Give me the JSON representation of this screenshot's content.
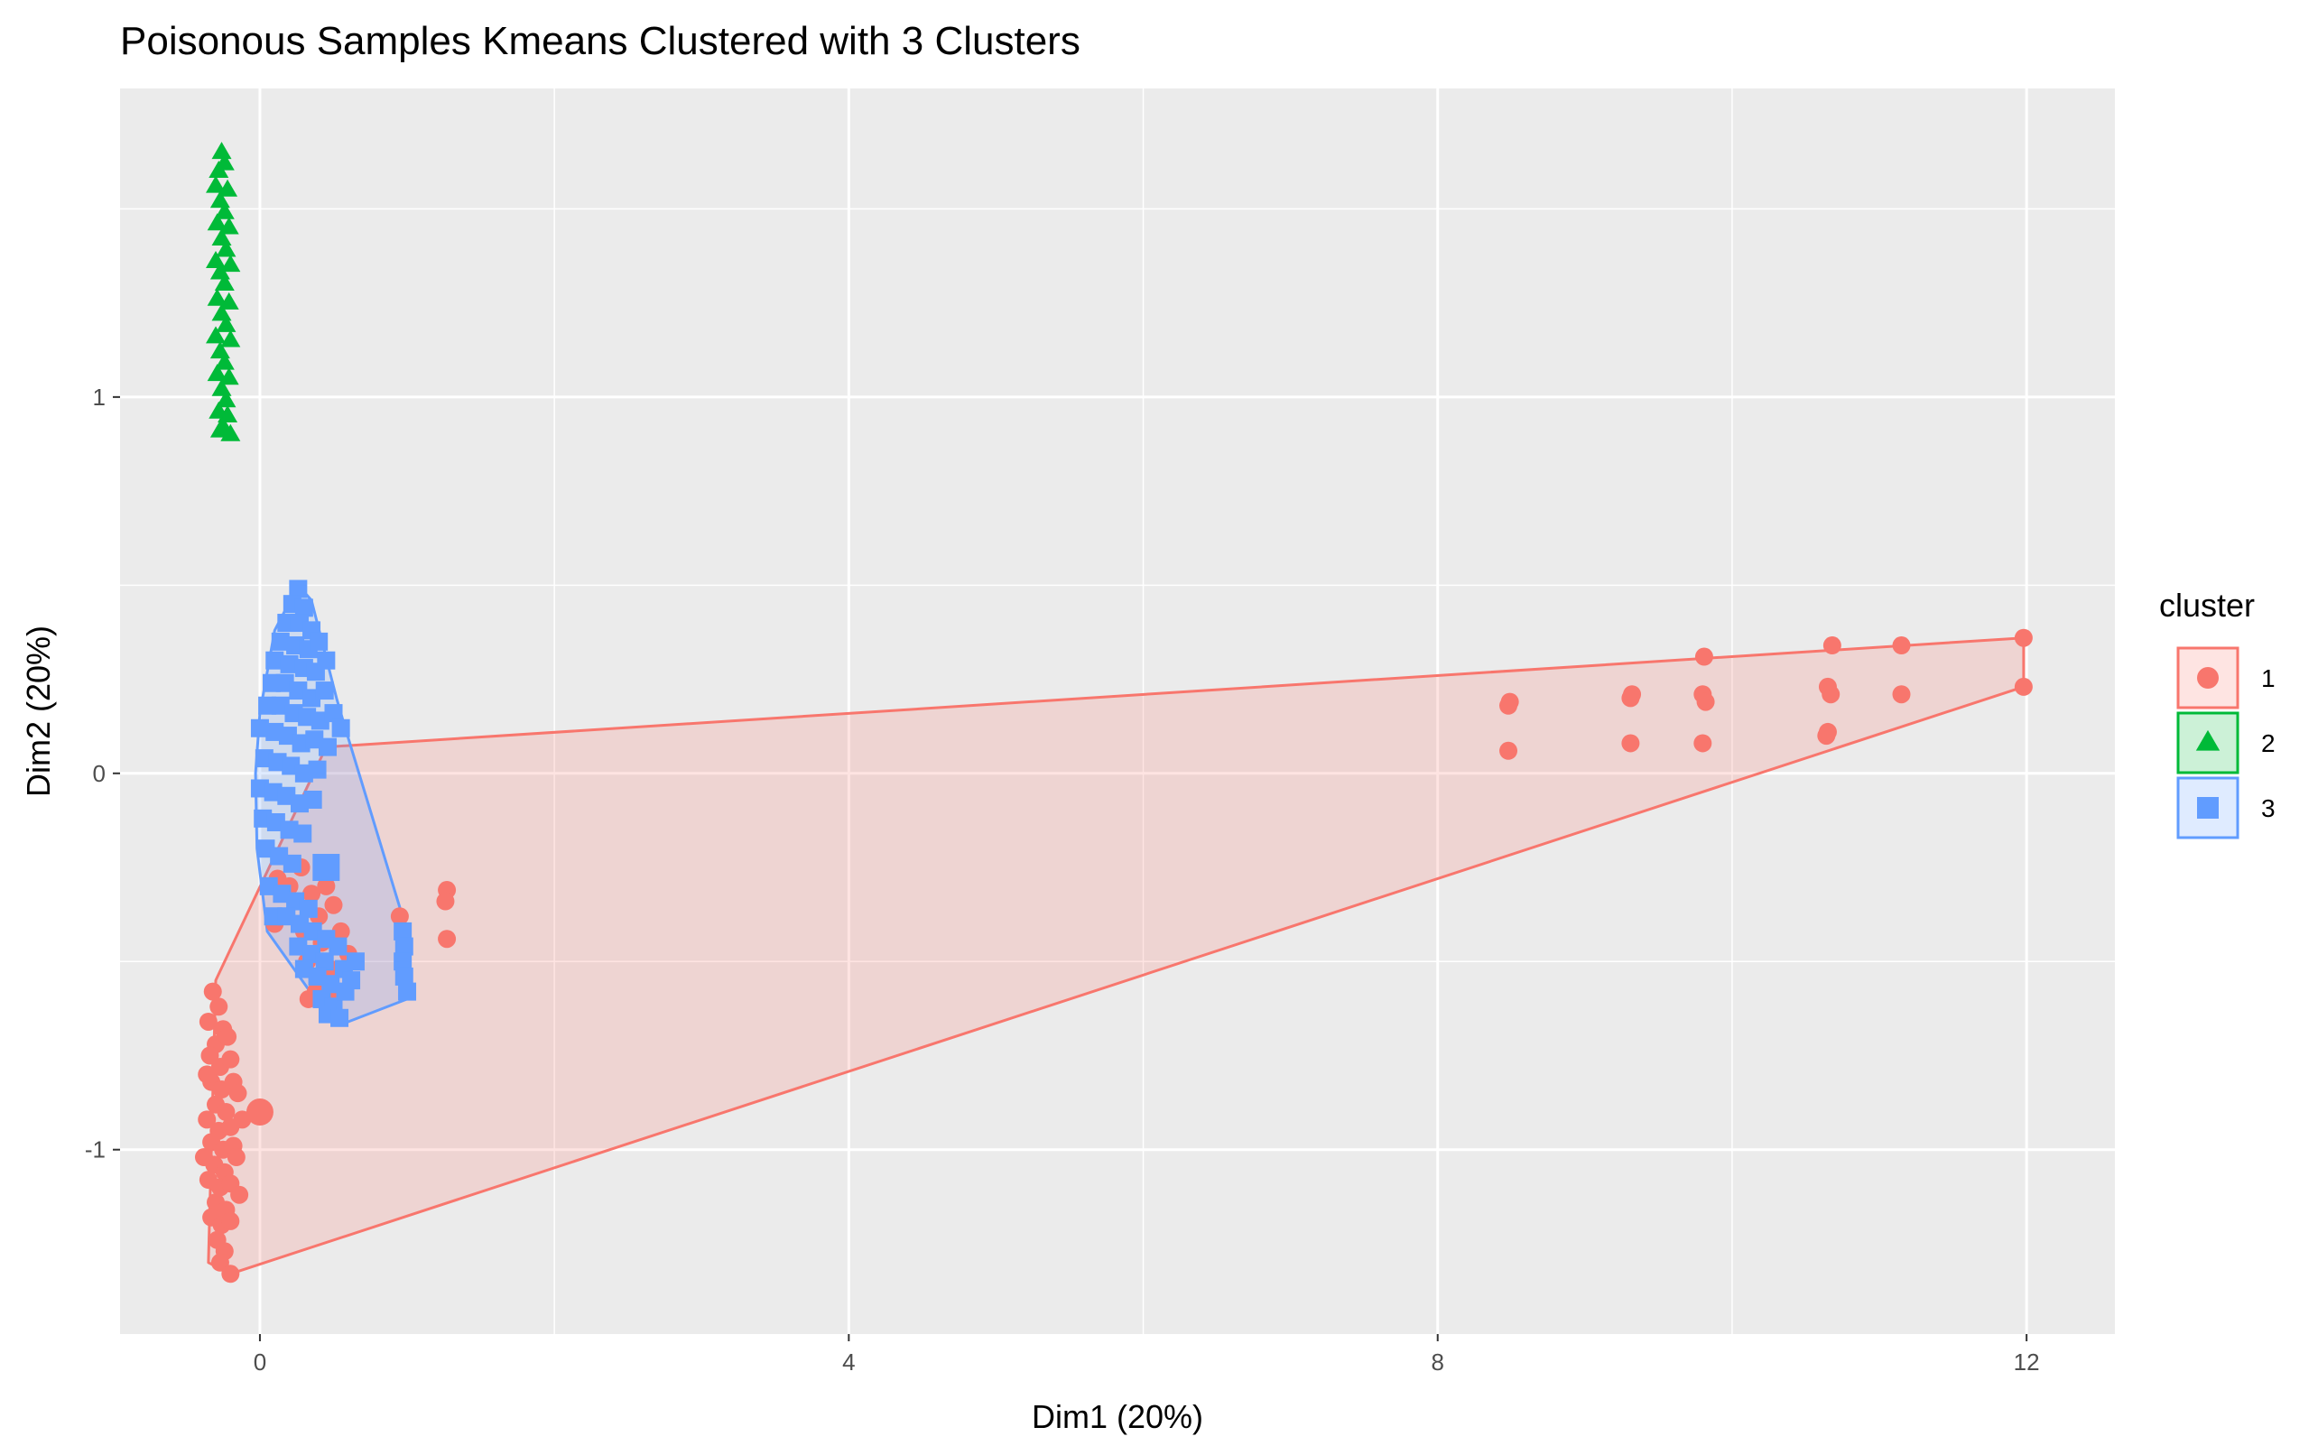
{
  "chart_data": {
    "type": "scatter",
    "title": "Poisonous Samples Kmeans Clustered with 3 Clusters",
    "xlabel": "Dim1 (20%)",
    "ylabel": "Dim2 (20%)",
    "xlim": [
      -0.95,
      12.6
    ],
    "ylim": [
      -1.49,
      1.82
    ],
    "x_ticks": [
      0,
      4,
      8,
      12
    ],
    "y_ticks": [
      -1,
      0,
      1
    ],
    "grid": true,
    "legend_title": "cluster",
    "legend_position": "right",
    "colors": {
      "panel": "#ebebeb",
      "grid": "#ffffff",
      "1": "#f8766d",
      "2": "#00ba38",
      "3": "#619cff"
    },
    "series": [
      {
        "name": "1",
        "shape": "circle",
        "hull": [
          [
            -0.3,
            -0.55
          ],
          [
            0.45,
            0.07
          ],
          [
            11.98,
            0.36
          ],
          [
            11.98,
            0.23
          ],
          [
            -0.2,
            -1.33
          ],
          [
            -0.35,
            -1.3
          ]
        ],
        "centroid": [
          0.0,
          -0.9
        ],
        "points": [
          [
            -0.32,
            -0.58
          ],
          [
            -0.28,
            -0.62
          ],
          [
            -0.35,
            -0.66
          ],
          [
            -0.25,
            -0.68
          ],
          [
            -0.3,
            -0.72
          ],
          [
            -0.22,
            -0.7
          ],
          [
            -0.34,
            -0.75
          ],
          [
            -0.27,
            -0.78
          ],
          [
            -0.2,
            -0.76
          ],
          [
            -0.33,
            -0.82
          ],
          [
            -0.26,
            -0.84
          ],
          [
            -0.18,
            -0.82
          ],
          [
            -0.3,
            -0.88
          ],
          [
            -0.23,
            -0.9
          ],
          [
            -0.36,
            -0.92
          ],
          [
            -0.28,
            -0.95
          ],
          [
            -0.2,
            -0.94
          ],
          [
            -0.33,
            -0.98
          ],
          [
            -0.25,
            -1.0
          ],
          [
            -0.18,
            -0.99
          ],
          [
            -0.31,
            -1.04
          ],
          [
            -0.24,
            -1.06
          ],
          [
            -0.35,
            -1.08
          ],
          [
            -0.27,
            -1.1
          ],
          [
            -0.2,
            -1.09
          ],
          [
            -0.3,
            -1.14
          ],
          [
            -0.23,
            -1.16
          ],
          [
            -0.33,
            -1.18
          ],
          [
            -0.26,
            -1.2
          ],
          [
            -0.2,
            -1.19
          ],
          [
            -0.29,
            -1.24
          ],
          [
            -0.24,
            -1.27
          ],
          [
            -0.27,
            -1.3
          ],
          [
            -0.2,
            -1.33
          ],
          [
            -0.15,
            -0.85
          ],
          [
            -0.12,
            -0.92
          ],
          [
            -0.16,
            -1.02
          ],
          [
            -0.14,
            -1.12
          ],
          [
            -0.36,
            -0.8
          ],
          [
            -0.38,
            -1.02
          ],
          [
            0.12,
            -0.28
          ],
          [
            0.2,
            -0.3
          ],
          [
            0.28,
            -0.25
          ],
          [
            0.35,
            -0.32
          ],
          [
            0.45,
            -0.3
          ],
          [
            0.4,
            -0.38
          ],
          [
            0.5,
            -0.35
          ],
          [
            0.3,
            -0.42
          ],
          [
            0.42,
            -0.45
          ],
          [
            0.55,
            -0.42
          ],
          [
            0.32,
            -0.5
          ],
          [
            0.48,
            -0.52
          ],
          [
            0.6,
            -0.48
          ],
          [
            0.38,
            -0.58
          ],
          [
            0.5,
            -0.6
          ],
          [
            0.33,
            -0.6
          ],
          [
            0.1,
            -0.4
          ],
          [
            0.95,
            -0.38
          ],
          [
            1.27,
            -0.31
          ],
          [
            1.26,
            -0.34
          ],
          [
            1.27,
            -0.44
          ],
          [
            8.48,
            0.18
          ],
          [
            8.49,
            0.19
          ],
          [
            8.48,
            0.06
          ],
          [
            9.31,
            0.2
          ],
          [
            9.32,
            0.21
          ],
          [
            9.31,
            0.08
          ],
          [
            9.8,
            0.21
          ],
          [
            9.82,
            0.19
          ],
          [
            9.81,
            0.31
          ],
          [
            9.8,
            0.08
          ],
          [
            10.65,
            0.23
          ],
          [
            10.67,
            0.21
          ],
          [
            10.68,
            0.34
          ],
          [
            10.64,
            0.1
          ],
          [
            10.65,
            0.11
          ],
          [
            11.15,
            0.34
          ],
          [
            11.15,
            0.21
          ],
          [
            11.98,
            0.36
          ],
          [
            11.98,
            0.23
          ]
        ]
      },
      {
        "name": "2",
        "shape": "triangle",
        "hull": [],
        "centroid": null,
        "points": [
          [
            -0.26,
            1.65
          ],
          [
            -0.28,
            1.6
          ],
          [
            -0.24,
            1.62
          ],
          [
            -0.3,
            1.56
          ],
          [
            -0.22,
            1.55
          ],
          [
            -0.27,
            1.52
          ],
          [
            -0.24,
            1.49
          ],
          [
            -0.29,
            1.46
          ],
          [
            -0.21,
            1.45
          ],
          [
            -0.26,
            1.42
          ],
          [
            -0.23,
            1.39
          ],
          [
            -0.3,
            1.36
          ],
          [
            -0.2,
            1.35
          ],
          [
            -0.27,
            1.33
          ],
          [
            -0.24,
            1.3
          ],
          [
            -0.29,
            1.26
          ],
          [
            -0.21,
            1.25
          ],
          [
            -0.26,
            1.22
          ],
          [
            -0.23,
            1.19
          ],
          [
            -0.3,
            1.16
          ],
          [
            -0.2,
            1.15
          ],
          [
            -0.27,
            1.12
          ],
          [
            -0.24,
            1.09
          ],
          [
            -0.29,
            1.06
          ],
          [
            -0.21,
            1.05
          ],
          [
            -0.26,
            1.02
          ],
          [
            -0.23,
            0.99
          ],
          [
            -0.28,
            0.96
          ],
          [
            -0.22,
            0.95
          ],
          [
            -0.25,
            0.92
          ],
          [
            -0.2,
            0.9
          ],
          [
            -0.27,
            0.91
          ]
        ]
      },
      {
        "name": "3",
        "shape": "square",
        "hull": [
          [
            0.26,
            0.5
          ],
          [
            0.35,
            0.46
          ],
          [
            0.52,
            0.2
          ],
          [
            0.58,
            0.12
          ],
          [
            1.0,
            -0.42
          ],
          [
            1.0,
            -0.6
          ],
          [
            0.6,
            -0.66
          ],
          [
            0.45,
            -0.64
          ],
          [
            0.05,
            -0.42
          ],
          [
            -0.02,
            -0.2
          ],
          [
            -0.03,
            0.0
          ],
          [
            0.0,
            0.16
          ],
          [
            0.1,
            0.38
          ]
        ],
        "centroid": [
          0.45,
          -0.25
        ],
        "points": [
          [
            0.26,
            0.49
          ],
          [
            0.22,
            0.45
          ],
          [
            0.3,
            0.44
          ],
          [
            0.18,
            0.4
          ],
          [
            0.27,
            0.4
          ],
          [
            0.35,
            0.38
          ],
          [
            0.14,
            0.35
          ],
          [
            0.24,
            0.34
          ],
          [
            0.33,
            0.33
          ],
          [
            0.4,
            0.35
          ],
          [
            0.1,
            0.3
          ],
          [
            0.2,
            0.29
          ],
          [
            0.3,
            0.28
          ],
          [
            0.38,
            0.27
          ],
          [
            0.45,
            0.3
          ],
          [
            0.08,
            0.24
          ],
          [
            0.17,
            0.24
          ],
          [
            0.26,
            0.22
          ],
          [
            0.35,
            0.2
          ],
          [
            0.44,
            0.22
          ],
          [
            0.05,
            0.18
          ],
          [
            0.14,
            0.18
          ],
          [
            0.23,
            0.16
          ],
          [
            0.32,
            0.15
          ],
          [
            0.41,
            0.14
          ],
          [
            0.5,
            0.16
          ],
          [
            0.0,
            0.12
          ],
          [
            0.1,
            0.11
          ],
          [
            0.19,
            0.1
          ],
          [
            0.28,
            0.08
          ],
          [
            0.37,
            0.09
          ],
          [
            0.46,
            0.07
          ],
          [
            0.55,
            0.12
          ],
          [
            0.03,
            0.04
          ],
          [
            0.12,
            0.03
          ],
          [
            0.21,
            0.02
          ],
          [
            0.3,
            0.0
          ],
          [
            0.39,
            0.01
          ],
          [
            0.0,
            -0.04
          ],
          [
            0.09,
            -0.05
          ],
          [
            0.18,
            -0.06
          ],
          [
            0.27,
            -0.08
          ],
          [
            0.36,
            -0.07
          ],
          [
            0.02,
            -0.12
          ],
          [
            0.11,
            -0.13
          ],
          [
            0.2,
            -0.15
          ],
          [
            0.29,
            -0.16
          ],
          [
            0.04,
            -0.2
          ],
          [
            0.13,
            -0.22
          ],
          [
            0.22,
            -0.24
          ],
          [
            0.06,
            -0.3
          ],
          [
            0.15,
            -0.32
          ],
          [
            0.24,
            -0.34
          ],
          [
            0.33,
            -0.36
          ],
          [
            0.09,
            -0.38
          ],
          [
            0.18,
            -0.38
          ],
          [
            0.27,
            -0.4
          ],
          [
            0.36,
            -0.42
          ],
          [
            0.45,
            -0.44
          ],
          [
            0.26,
            -0.46
          ],
          [
            0.35,
            -0.48
          ],
          [
            0.44,
            -0.5
          ],
          [
            0.53,
            -0.46
          ],
          [
            0.3,
            -0.52
          ],
          [
            0.39,
            -0.54
          ],
          [
            0.48,
            -0.56
          ],
          [
            0.57,
            -0.52
          ],
          [
            0.42,
            -0.6
          ],
          [
            0.5,
            -0.62
          ],
          [
            0.58,
            -0.58
          ],
          [
            0.46,
            -0.64
          ],
          [
            0.54,
            -0.65
          ],
          [
            0.62,
            -0.55
          ],
          [
            0.65,
            -0.5
          ],
          [
            0.97,
            -0.42
          ],
          [
            0.98,
            -0.46
          ],
          [
            0.97,
            -0.5
          ],
          [
            0.98,
            -0.54
          ],
          [
            1.0,
            -0.58
          ]
        ]
      }
    ]
  }
}
